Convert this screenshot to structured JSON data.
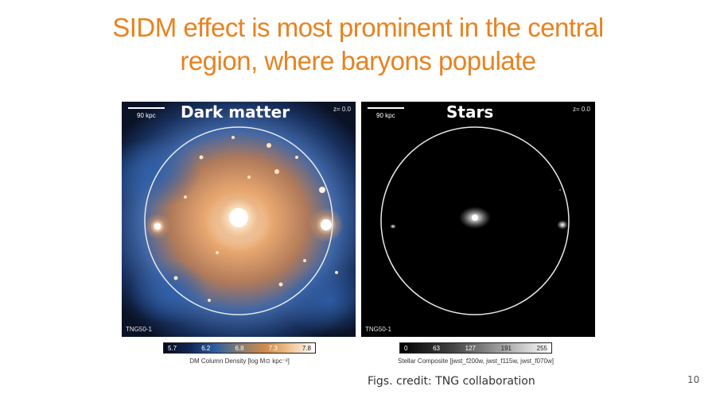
{
  "slide": {
    "title_line1": "SIDM effect is most prominent in the central",
    "title_line2": "region, where baryons populate",
    "title_color": "#e8821e",
    "credit": "Figs. credit: TNG collaboration",
    "page_number": "10"
  },
  "panels": {
    "dark_matter": {
      "heading": "Dark matter",
      "scale_bar": "90 kpc",
      "redshift": "z= 0.0",
      "sim_label": "TNG50-1",
      "colorbar_ticks": [
        "5.7",
        "6.2",
        "6.8",
        "7.3",
        "7.8"
      ],
      "colorbar_label": "DM Column Density [log M⊙ kpc⁻²]"
    },
    "stars": {
      "heading": "Stars",
      "scale_bar": "90 kpc",
      "redshift": "z= 0.0",
      "sim_label": "TNG50-1",
      "colorbar_ticks": [
        "0",
        "63",
        "127",
        "191",
        "255"
      ],
      "colorbar_label": "Stellar Composite [jwst_f200w, jwst_f115w, jwst_f070w]"
    }
  }
}
